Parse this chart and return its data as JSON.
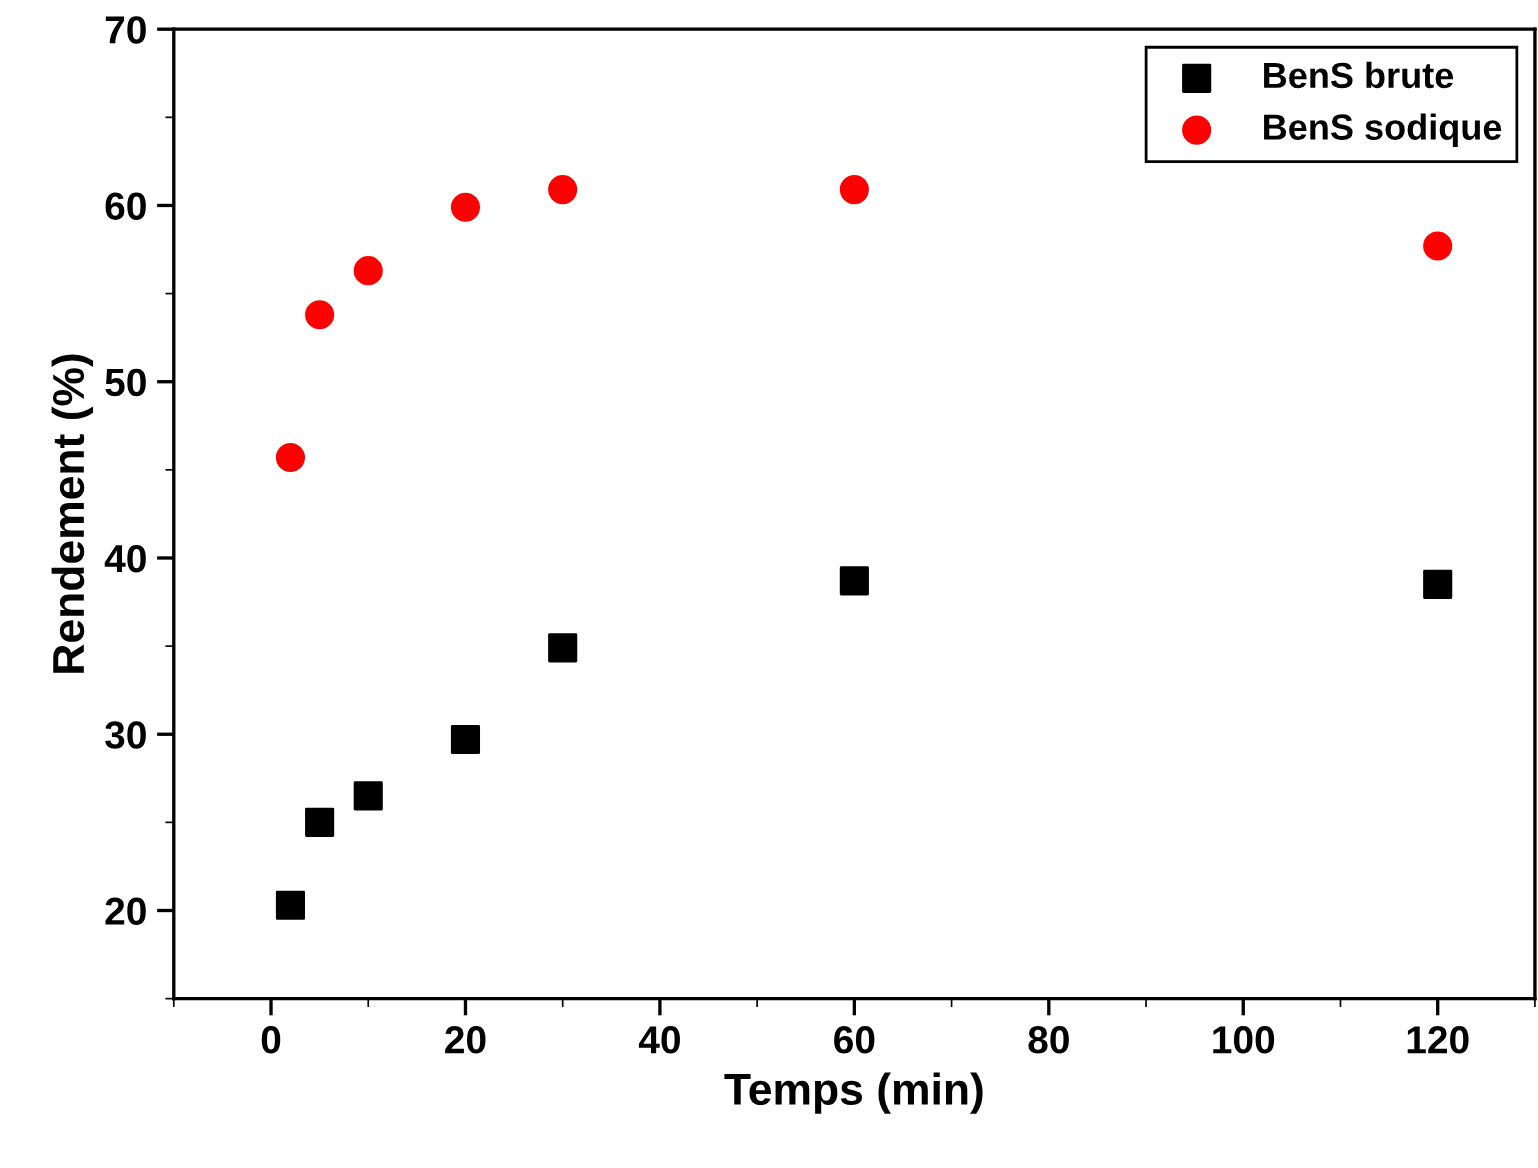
{
  "chart_data": {
    "type": "scatter",
    "xlabel": "Temps (min)",
    "ylabel": "Rendement (%)",
    "xlim": [
      -10,
      130
    ],
    "ylim": [
      15,
      70
    ],
    "xticks": [
      0,
      20,
      40,
      60,
      80,
      100,
      120
    ],
    "yticks": [
      20,
      30,
      40,
      50,
      60,
      70
    ],
    "grid": false,
    "legend": "top right",
    "series": [
      {
        "name": "BenS brute",
        "color": "#000000",
        "marker": "square",
        "x": [
          2,
          5,
          10,
          20,
          30,
          60,
          120
        ],
        "values": [
          20.3,
          25.0,
          26.5,
          29.7,
          34.9,
          38.7,
          38.5
        ]
      },
      {
        "name": "BenS sodique",
        "color": "#ff0000",
        "marker": "circle",
        "x": [
          2,
          5,
          10,
          20,
          30,
          60,
          120
        ],
        "values": [
          45.7,
          53.8,
          56.3,
          59.9,
          60.9,
          60.9,
          57.7
        ]
      }
    ]
  }
}
